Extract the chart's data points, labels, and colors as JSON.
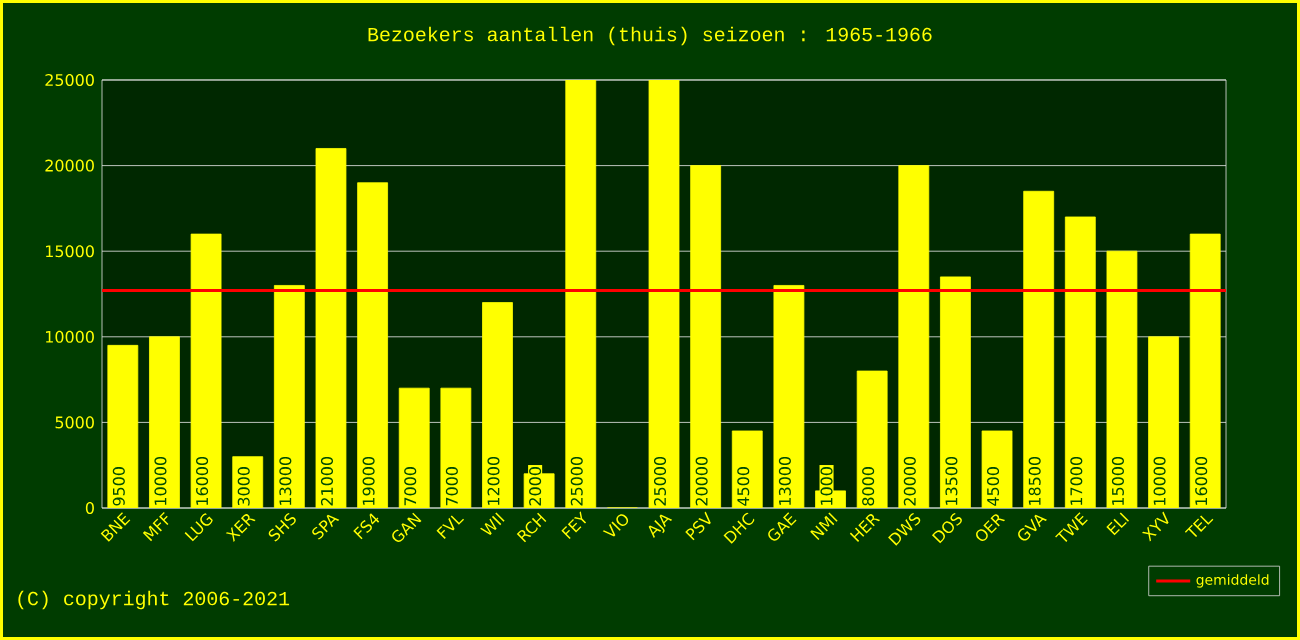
{
  "chart_data": {
    "type": "bar",
    "title": "Bezoekers aantallen (thuis) seizoen : 1965-1966",
    "categories": [
      "BNE",
      "MFF",
      "LUG",
      "XER",
      "SHS",
      "SPA",
      "FS4",
      "GAN",
      "FVL",
      "WII",
      "RCH",
      "FEY",
      "VIO",
      "AJA",
      "PSV",
      "DHC",
      "GAE",
      "NMI",
      "HER",
      "DWS",
      "DOS",
      "OER",
      "GVA",
      "TWE",
      "ELI",
      "XYV",
      "TEL"
    ],
    "values": [
      9500,
      10000,
      16000,
      3000,
      13000,
      21000,
      19000,
      7000,
      7000,
      12000,
      2000,
      25000,
      0,
      25000,
      20000,
      4500,
      13000,
      1000,
      8000,
      20000,
      13500,
      4500,
      18500,
      17000,
      15000,
      10000,
      16000
    ],
    "value_labels": [
      "9500",
      "10000",
      "16000",
      "3000",
      "13000",
      "21000",
      "19000",
      "7000",
      "7000",
      "12000",
      "2000",
      "25000",
      null,
      "25000",
      "20000",
      "4500",
      "13000",
      "1000",
      "8000",
      "20000",
      "13500",
      "4500",
      "18500",
      "17000",
      "15000",
      "10000",
      "16000"
    ],
    "color": "#ffff00",
    "ylim": [
      0,
      25000
    ],
    "yticks": [
      0,
      5000,
      10000,
      15000,
      20000,
      25000
    ],
    "grid": "y",
    "legend": "bottom right",
    "ref_lines": [
      {
        "axis": "y",
        "value": 12700,
        "label": "gemiddeld",
        "color": "#ff0000"
      }
    ],
    "annotations": [
      "(C) copyright 2006-2021"
    ]
  }
}
